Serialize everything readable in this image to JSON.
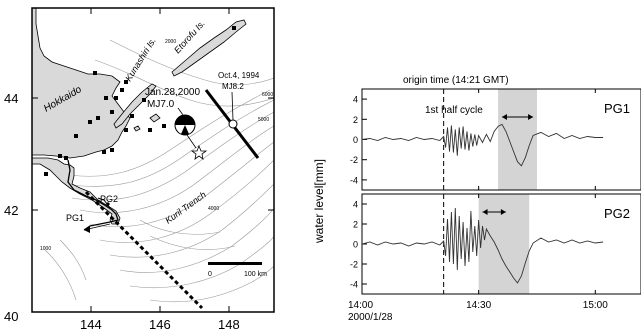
{
  "map": {
    "lat_ticks": [
      "44",
      "42",
      "40"
    ],
    "lon_ticks": [
      "144",
      "146",
      "148"
    ],
    "labels": {
      "hokkaido": "Hokkaido",
      "kunashiri": "Kunashiri Is.",
      "etorofu": "Etorofu Is.",
      "kuril_trench": "Kuril Trench",
      "event_2000_date": "Jan.28,2000",
      "event_2000_mag": "MJ7.0",
      "event_1994_date": "Oct.4, 1994",
      "event_1994_mag": "MJ8.2",
      "pg1": "PG1",
      "pg2": "PG2",
      "scale_zero": "0",
      "scale_km": "100 km"
    },
    "contours": [
      "2000",
      "4000",
      "5000",
      "6000",
      "1000"
    ],
    "colors": {
      "land": "#d9d9d9",
      "frame": "#000000",
      "contour": "#9a9a9a"
    }
  },
  "chart_data": {
    "type": "line",
    "title": "origin time (14:21 GMT)",
    "ylabel": "water level[mm]",
    "ylim": [
      -5,
      5
    ],
    "y_ticks": [
      "4",
      "2",
      "0",
      "-2",
      "-4"
    ],
    "x_ticks": [
      "14:00",
      "14:30",
      "15:00"
    ],
    "x_subtitle": "2000/1/28",
    "origin_minute": 21,
    "annotation": "1st half cycle",
    "series": [
      {
        "name": "PG1",
        "shade": [
          35,
          45
        ],
        "arrow": [
          36,
          44
        ],
        "points": [
          [
            0,
            0
          ],
          [
            2,
            0.1
          ],
          [
            4,
            -0.1
          ],
          [
            6,
            0.2
          ],
          [
            8,
            0
          ],
          [
            10,
            0.1
          ],
          [
            12,
            -0.1
          ],
          [
            14,
            0.2
          ],
          [
            16,
            0
          ],
          [
            18,
            0.1
          ],
          [
            20,
            -0.1
          ],
          [
            21,
            0.3
          ],
          [
            21.5,
            -0.8
          ],
          [
            22,
            1.2
          ],
          [
            22.5,
            -1.2
          ],
          [
            23,
            1.4
          ],
          [
            23.5,
            -1.3
          ],
          [
            24,
            1
          ],
          [
            24.5,
            -1.6
          ],
          [
            25,
            1.2
          ],
          [
            25.5,
            -0.9
          ],
          [
            26,
            1.3
          ],
          [
            26.5,
            -1
          ],
          [
            27,
            0.8
          ],
          [
            27.5,
            -1.1
          ],
          [
            28,
            0.6
          ],
          [
            28.5,
            -0.7
          ],
          [
            29,
            0.5
          ],
          [
            29.5,
            -0.6
          ],
          [
            30,
            0.4
          ],
          [
            31,
            -0.3
          ],
          [
            32,
            0.5
          ],
          [
            33,
            -0.2
          ],
          [
            34,
            0.8
          ],
          [
            35,
            1.3
          ],
          [
            36,
            1.5
          ],
          [
            37,
            0.8
          ],
          [
            38,
            -0.2
          ],
          [
            39,
            -1.2
          ],
          [
            40,
            -2.2
          ],
          [
            41,
            -2.6
          ],
          [
            42,
            -1.8
          ],
          [
            43,
            -0.6
          ],
          [
            44,
            0.4
          ],
          [
            46,
            0.7
          ],
          [
            48,
            0.3
          ],
          [
            50,
            0.6
          ],
          [
            52,
            0.1
          ],
          [
            54,
            0.4
          ],
          [
            56,
            0.1
          ],
          [
            58,
            0.3
          ],
          [
            60,
            0.2
          ],
          [
            62,
            0.2
          ]
        ]
      },
      {
        "name": "PG2",
        "shade": [
          30,
          43
        ],
        "arrow": [
          31,
          37
        ],
        "points": [
          [
            0,
            0
          ],
          [
            2,
            0.2
          ],
          [
            4,
            -0.1
          ],
          [
            6,
            0.2
          ],
          [
            8,
            0
          ],
          [
            10,
            0.1
          ],
          [
            12,
            -0.2
          ],
          [
            14,
            0.1
          ],
          [
            16,
            0
          ],
          [
            18,
            0.2
          ],
          [
            20,
            -0.1
          ],
          [
            21,
            0.3
          ],
          [
            21.5,
            -1.2
          ],
          [
            22,
            2.5
          ],
          [
            22.5,
            -1.8
          ],
          [
            23,
            3.2
          ],
          [
            23.5,
            -2
          ],
          [
            24,
            3.6
          ],
          [
            24.5,
            -2.6
          ],
          [
            25,
            2.8
          ],
          [
            25.5,
            -1.5
          ],
          [
            26,
            2.2
          ],
          [
            26.5,
            -2.2
          ],
          [
            27,
            1.6
          ],
          [
            27.5,
            -1.8
          ],
          [
            28,
            3.3
          ],
          [
            28.5,
            -0.8
          ],
          [
            29,
            1.8
          ],
          [
            29.5,
            -1.2
          ],
          [
            30,
            2.4
          ],
          [
            30.5,
            -0.4
          ],
          [
            31,
            1.8
          ],
          [
            31.5,
            0.4
          ],
          [
            32,
            1.5
          ],
          [
            33,
            0.8
          ],
          [
            34,
            0.2
          ],
          [
            35,
            -0.6
          ],
          [
            36,
            -1.5
          ],
          [
            37,
            -2.2
          ],
          [
            38,
            -2.8
          ],
          [
            39,
            -3.4
          ],
          [
            40,
            -3.9
          ],
          [
            41,
            -3.2
          ],
          [
            42,
            -1.9
          ],
          [
            43,
            -0.7
          ],
          [
            44,
            0.1
          ],
          [
            46,
            0.6
          ],
          [
            48,
            0.2
          ],
          [
            50,
            0.4
          ],
          [
            52,
            0.1
          ],
          [
            54,
            0.4
          ],
          [
            56,
            0.1
          ],
          [
            58,
            0.3
          ],
          [
            60,
            0.1
          ],
          [
            62,
            0.2
          ]
        ]
      }
    ]
  }
}
